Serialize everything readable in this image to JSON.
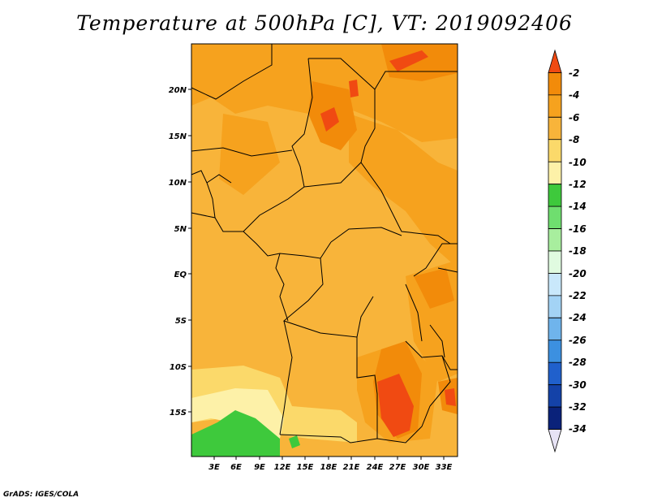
{
  "title": "Temperature at 500hPa [C], VT: 2019092406",
  "credit": "GrADS: IGES/COLA",
  "map": {
    "lat_labels": [
      "20N",
      "15N",
      "10N",
      "5N",
      "EQ",
      "5S",
      "10S",
      "15S"
    ],
    "lon_labels": [
      "3E",
      "6E",
      "9E",
      "12E",
      "15E",
      "18E",
      "21E",
      "24E",
      "27E",
      "30E",
      "33E"
    ]
  },
  "colorbar": {
    "labels": [
      "-2",
      "-4",
      "-6",
      "-8",
      "-10",
      "-12",
      "-14",
      "-16",
      "-18",
      "-20",
      "-22",
      "-24",
      "-26",
      "-28",
      "-30",
      "-32",
      "-34"
    ],
    "colors": [
      "#f04a12",
      "#f28b0a",
      "#f6a21e",
      "#f8b43a",
      "#fbd96a",
      "#fdf1a8",
      "#3ec93c",
      "#6fde6f",
      "#a8ee9e",
      "#e0fbe0",
      "#c9e8fb",
      "#a3d3f5",
      "#6fb4ec",
      "#3c90e0",
      "#2060cc",
      "#1442a8",
      "#0a227a",
      "#e7e3f5"
    ]
  }
}
